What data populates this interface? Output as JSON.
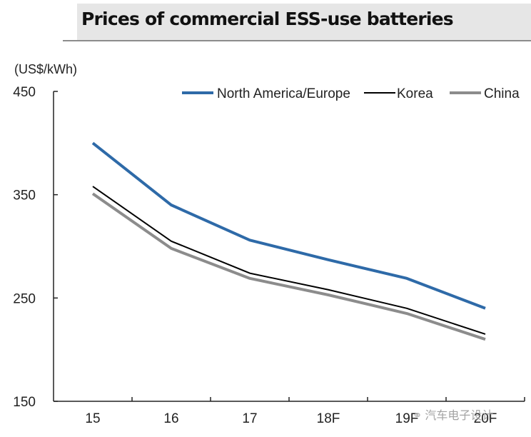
{
  "header": {
    "title": "Prices of commercial ESS-use batteries"
  },
  "watermark": {
    "icon": "wechat-icon",
    "text": "汽车电子设计"
  },
  "chart_data": {
    "type": "line",
    "title": "Prices of commercial ESS-use batteries",
    "xlabel": "",
    "ylabel": "(US$/kWh)",
    "categories": [
      "15",
      "16",
      "17",
      "18F",
      "19F",
      "20F"
    ],
    "yticks": [
      150,
      250,
      350,
      450
    ],
    "ytick_labels": [
      "150",
      "250",
      "350",
      "450"
    ],
    "ylim": [
      150,
      450
    ],
    "grid": false,
    "legend_position": "top-right",
    "series": [
      {
        "name": "North America/Europe",
        "color": "#2e6aa8",
        "values": [
          400,
          340,
          306,
          287,
          269,
          240
        ]
      },
      {
        "name": "Korea",
        "color": "#000000",
        "values": [
          358,
          305,
          274,
          258,
          240,
          215
        ]
      },
      {
        "name": "China",
        "color": "#8c8c8c",
        "values": [
          351,
          298,
          269,
          253,
          235,
          210
        ]
      }
    ]
  }
}
